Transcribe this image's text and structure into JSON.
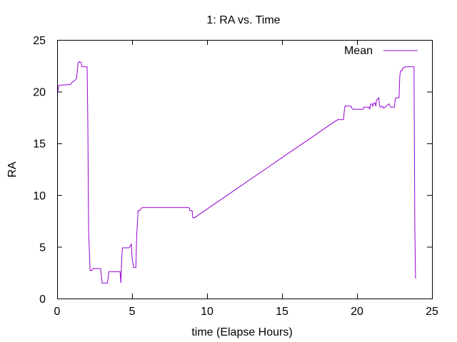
{
  "chart_data": {
    "type": "line",
    "title": "1: RA vs. Time",
    "xlabel": "time (Elapse Hours)",
    "ylabel": "RA",
    "xlim": [
      0,
      25
    ],
    "ylim": [
      0,
      25
    ],
    "xticks": [
      0,
      5,
      10,
      15,
      20,
      25
    ],
    "yticks": [
      0,
      5,
      10,
      15,
      20,
      25
    ],
    "grid": false,
    "legend": "top-right",
    "series": [
      {
        "name": "Mean",
        "color": "#9400d3",
        "x": [
          0.0,
          0.05,
          0.1,
          0.15,
          0.9,
          1.0,
          1.1,
          1.2,
          1.3,
          1.4,
          1.5,
          1.6,
          1.65,
          2.0,
          2.05,
          2.1,
          2.2,
          2.3,
          2.4,
          2.5,
          2.6,
          2.7,
          2.8,
          2.9,
          3.0,
          3.35,
          3.4,
          3.45,
          4.0,
          4.05,
          4.1,
          4.2,
          4.25,
          4.3,
          4.35,
          4.8,
          4.85,
          4.9,
          4.95,
          5.0,
          5.1,
          5.25,
          5.3,
          5.4,
          5.5,
          5.6,
          5.7,
          8.8,
          8.85,
          8.9,
          9.0,
          9.05,
          9.15,
          18.6,
          18.65,
          18.7,
          19.1,
          19.15,
          19.2,
          19.6,
          19.65,
          19.7,
          20.4,
          20.45,
          20.5,
          20.8,
          20.85,
          20.9,
          21.0,
          21.05,
          21.1,
          21.2,
          21.25,
          21.3,
          21.4,
          21.45,
          21.5,
          21.6,
          21.7,
          21.75,
          21.8,
          22.1,
          22.15,
          22.2,
          22.25,
          22.3,
          22.5,
          22.55,
          22.6,
          22.8,
          22.85,
          22.9,
          23.0,
          23.05,
          23.1,
          23.2,
          23.25,
          23.3,
          23.4,
          23.45,
          23.5,
          23.7,
          23.8,
          23.85,
          23.9,
          23.95
        ],
        "y": [
          20.0,
          20.0,
          20.6,
          20.6,
          20.7,
          20.9,
          21.0,
          21.1,
          21.3,
          22.8,
          22.9,
          22.8,
          22.4,
          22.4,
          17.0,
          6.5,
          2.7,
          2.7,
          2.9,
          2.9,
          2.9,
          2.9,
          2.9,
          2.9,
          1.5,
          1.5,
          2.0,
          2.6,
          2.6,
          2.6,
          2.6,
          2.6,
          1.5,
          3.5,
          4.9,
          4.9,
          5.0,
          5.1,
          5.3,
          3.9,
          3.0,
          3.0,
          5.9,
          8.5,
          8.5,
          8.7,
          8.8,
          8.8,
          8.5,
          8.5,
          8.5,
          7.8,
          7.8,
          17.2,
          17.2,
          17.3,
          17.3,
          18.1,
          18.6,
          18.6,
          18.4,
          18.3,
          18.3,
          18.5,
          18.5,
          18.5,
          18.3,
          18.8,
          18.8,
          18.6,
          18.9,
          18.9,
          18.6,
          19.2,
          19.3,
          19.4,
          18.6,
          18.5,
          18.6,
          18.4,
          18.4,
          18.8,
          18.8,
          18.6,
          18.5,
          18.5,
          18.5,
          19.3,
          19.4,
          19.4,
          21.5,
          22.0,
          22.0,
          22.3,
          22.3,
          22.4,
          22.4,
          22.4,
          22.4,
          22.4,
          22.4,
          22.4,
          22.4,
          7.0,
          2.0,
          2.0
        ]
      }
    ]
  }
}
